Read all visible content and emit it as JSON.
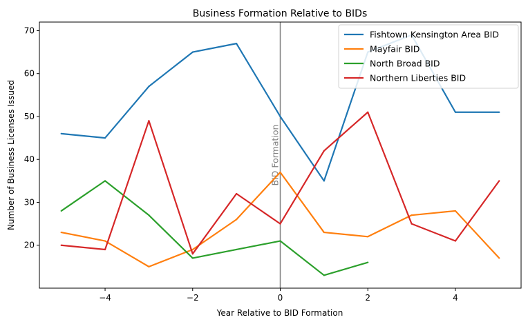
{
  "chart_data": {
    "type": "line",
    "title": "Business Formation Relative to BIDs",
    "xlabel": "Year Relative to BID Formation",
    "ylabel": "Number of Business Licenses Issued",
    "xlim": [
      -5.5,
      5.5
    ],
    "ylim": [
      10,
      72
    ],
    "xticks": [
      -4,
      -2,
      0,
      2,
      4
    ],
    "xtick_labels": [
      "−4",
      "−2",
      "0",
      "2",
      "4"
    ],
    "yticks": [
      20,
      30,
      40,
      50,
      60,
      70
    ],
    "ytick_labels": [
      "20",
      "30",
      "40",
      "50",
      "60",
      "70"
    ],
    "grid": false,
    "legend_position": "top-right",
    "vline": {
      "x": 0,
      "label": "BID Formation",
      "color": "#808080"
    },
    "series": [
      {
        "name": "Fishtown Kensington Area BID",
        "color": "#1f77b4",
        "x": [
          -5,
          -4,
          -3,
          -2,
          -1,
          0,
          1,
          2,
          3,
          4,
          5
        ],
        "y": [
          46,
          45,
          57,
          65,
          67,
          50,
          35,
          65,
          69,
          51,
          51
        ]
      },
      {
        "name": "Mayfair BID",
        "color": "#ff7f0e",
        "x": [
          -5,
          -4,
          -3,
          -2,
          -1,
          0,
          1,
          2,
          3,
          4,
          5
        ],
        "y": [
          23,
          21,
          15,
          19,
          26,
          37,
          23,
          22,
          27,
          28,
          17
        ]
      },
      {
        "name": "North Broad BID",
        "color": "#2ca02c",
        "x": [
          -5,
          -4,
          -3,
          -2,
          -1,
          0,
          1,
          2
        ],
        "y": [
          28,
          35,
          27,
          17,
          19,
          21,
          13,
          16
        ]
      },
      {
        "name": "Northern Liberties BID",
        "color": "#d62728",
        "x": [
          -5,
          -4,
          -3,
          -2,
          -1,
          0,
          1,
          2,
          3,
          4,
          5
        ],
        "y": [
          20,
          19,
          49,
          18,
          32,
          25,
          42,
          51,
          25,
          21,
          35
        ]
      }
    ]
  }
}
